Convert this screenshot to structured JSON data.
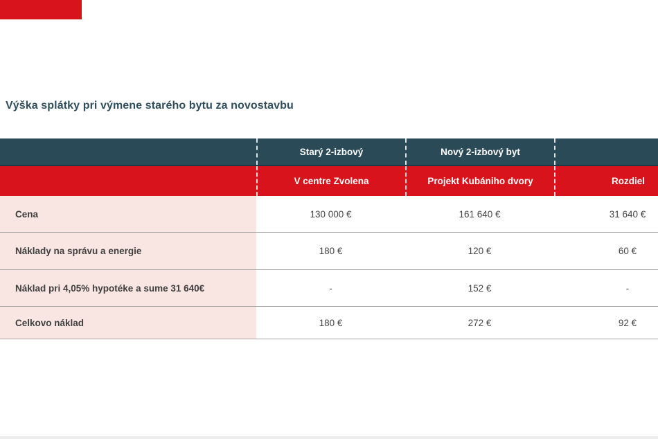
{
  "title": "Výška splátky pri výmene starého bytu za novostavbu",
  "table": {
    "group_header": {
      "label_col": "",
      "old_col": "Starý 2-izbový",
      "new_col": "Nový 2-izbový byt",
      "diff_col": ""
    },
    "sub_header": {
      "label_col": "",
      "old_col": "V centre Zvolena",
      "new_col": "Projekt Kubániho dvory",
      "diff_col": "Rozdiel"
    },
    "rows": [
      {
        "label": "Cena",
        "old": "130 000 €",
        "new": "161 640 €",
        "diff": "31 640 €"
      },
      {
        "label": "Náklady na správu a energie",
        "old": "180 €",
        "new": "120 €",
        "diff": "60 €"
      },
      {
        "label": "Náklad pri 4,05% hypotéke a sume 31 640€",
        "old": "-",
        "new": "152 €",
        "diff": "-"
      },
      {
        "label": "Celkovo náklad",
        "old": "180 €",
        "new": "272 €",
        "diff": "92 €"
      }
    ]
  },
  "chart_data": {
    "type": "table",
    "title": "Výška splátky pri výmene starého bytu za novostavbu",
    "column_groups": [
      "",
      "Starý 2-izbový",
      "Nový 2-izbový byt",
      ""
    ],
    "columns": [
      "",
      "V centre Zvolena",
      "Projekt Kubániho dvory",
      "Rozdiel"
    ],
    "rows": [
      [
        "Cena",
        "130 000 €",
        "161 640 €",
        "31 640 €"
      ],
      [
        "Náklady na správu a energie",
        "180 €",
        "120 €",
        "60 €"
      ],
      [
        "Náklad pri 4,05% hypotéke a sume 31 640€",
        "-",
        "152 €",
        "-"
      ],
      [
        "Celkovo náklad",
        "180 €",
        "272 €",
        "92 €"
      ]
    ],
    "layout_hints": {
      "header_separators": "white dashed vertical lines between value columns",
      "label_column_background": "light pink",
      "grid": "horizontal gray lines between body rows"
    }
  },
  "colors": {
    "teal": "#2b4a58",
    "teal_text": "#2f4e5d",
    "red": "#d8131b",
    "pink": "#f9e6e3"
  }
}
